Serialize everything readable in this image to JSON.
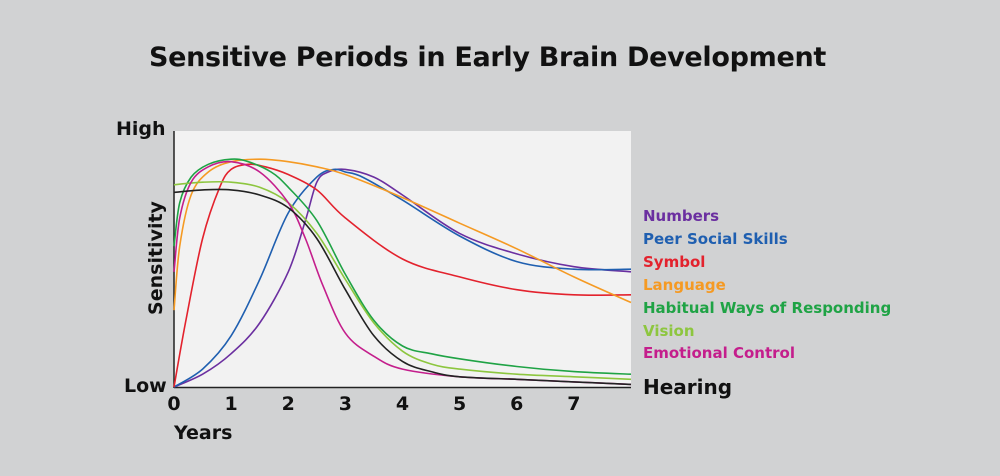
{
  "chart_data": {
    "type": "line",
    "title": "Sensitive Periods in Early Brain Development",
    "xlabel": "Years",
    "ylabel": "Sensitivity",
    "y_tick_labels": [
      "Low",
      "High"
    ],
    "x_ticks": [
      "0",
      "1",
      "2",
      "3",
      "4",
      "5",
      "6",
      "7"
    ],
    "xlim": [
      0,
      8
    ],
    "ylim": [
      0,
      1
    ],
    "grid": false,
    "legend_position": "right",
    "series": [
      {
        "name": "Numbers",
        "color": "#6b2fa0",
        "x": [
          0,
          0.5,
          1,
          1.5,
          2,
          2.3,
          2.5,
          2.7,
          3,
          3.5,
          4,
          5,
          6,
          7,
          8
        ],
        "y": [
          0,
          0.05,
          0.13,
          0.25,
          0.45,
          0.65,
          0.8,
          0.84,
          0.85,
          0.82,
          0.75,
          0.6,
          0.52,
          0.47,
          0.45
        ]
      },
      {
        "name": "Peer Social Skills",
        "color": "#1f5fb0",
        "x": [
          0,
          0.5,
          1,
          1.5,
          2,
          2.5,
          2.8,
          3,
          3.3,
          4,
          5,
          6,
          7,
          8
        ],
        "y": [
          0,
          0.07,
          0.2,
          0.42,
          0.68,
          0.82,
          0.85,
          0.84,
          0.82,
          0.73,
          0.59,
          0.49,
          0.46,
          0.46
        ]
      },
      {
        "name": "Symbol",
        "color": "#e3222d",
        "x": [
          0,
          0.2,
          0.5,
          0.8,
          1,
          1.3,
          1.6,
          2,
          2.5,
          3,
          4,
          5,
          6,
          7,
          8
        ],
        "y": [
          0,
          0.25,
          0.58,
          0.78,
          0.85,
          0.87,
          0.86,
          0.83,
          0.77,
          0.66,
          0.5,
          0.43,
          0.38,
          0.36,
          0.36
        ]
      },
      {
        "name": "Language",
        "color": "#f59a23",
        "x": [
          0,
          0.1,
          0.3,
          0.6,
          1,
          1.5,
          2,
          2.5,
          3,
          4,
          5,
          6,
          7,
          8
        ],
        "y": [
          0.3,
          0.55,
          0.75,
          0.84,
          0.88,
          0.89,
          0.88,
          0.86,
          0.83,
          0.74,
          0.64,
          0.54,
          0.43,
          0.33
        ]
      },
      {
        "name": "Habitual Ways of Responding",
        "color": "#1fa345",
        "x": [
          0,
          0.1,
          0.3,
          0.6,
          1,
          1.3,
          1.7,
          2,
          2.5,
          3,
          3.5,
          4,
          4.5,
          5,
          6,
          7,
          8
        ],
        "y": [
          0.55,
          0.72,
          0.82,
          0.87,
          0.89,
          0.88,
          0.84,
          0.78,
          0.65,
          0.44,
          0.26,
          0.16,
          0.13,
          0.11,
          0.08,
          0.06,
          0.05
        ]
      },
      {
        "name": "Vision",
        "color": "#8dc63f",
        "x": [
          0,
          0.5,
          1,
          1.5,
          2,
          2.5,
          3,
          3.5,
          4,
          4.5,
          5,
          6,
          7,
          8
        ],
        "y": [
          0.79,
          0.8,
          0.8,
          0.78,
          0.72,
          0.6,
          0.42,
          0.25,
          0.14,
          0.09,
          0.07,
          0.05,
          0.04,
          0.03
        ]
      },
      {
        "name": "Emotional Control",
        "color": "#c41e8c",
        "x": [
          0,
          0.1,
          0.3,
          0.6,
          1,
          1.5,
          2,
          2.3,
          2.6,
          3,
          3.5,
          4,
          5,
          6,
          7,
          8
        ],
        "y": [
          0.45,
          0.66,
          0.8,
          0.86,
          0.88,
          0.84,
          0.72,
          0.58,
          0.4,
          0.21,
          0.12,
          0.07,
          0.04,
          0.03,
          0.02,
          0.01
        ]
      },
      {
        "name": "Hearing",
        "color": "#222222",
        "x": [
          0,
          0.5,
          1,
          1.5,
          2,
          2.5,
          3,
          3.5,
          4,
          4.5,
          5,
          6,
          7,
          8
        ],
        "y": [
          0.76,
          0.77,
          0.77,
          0.75,
          0.7,
          0.58,
          0.38,
          0.2,
          0.1,
          0.06,
          0.04,
          0.03,
          0.02,
          0.01
        ]
      }
    ]
  }
}
